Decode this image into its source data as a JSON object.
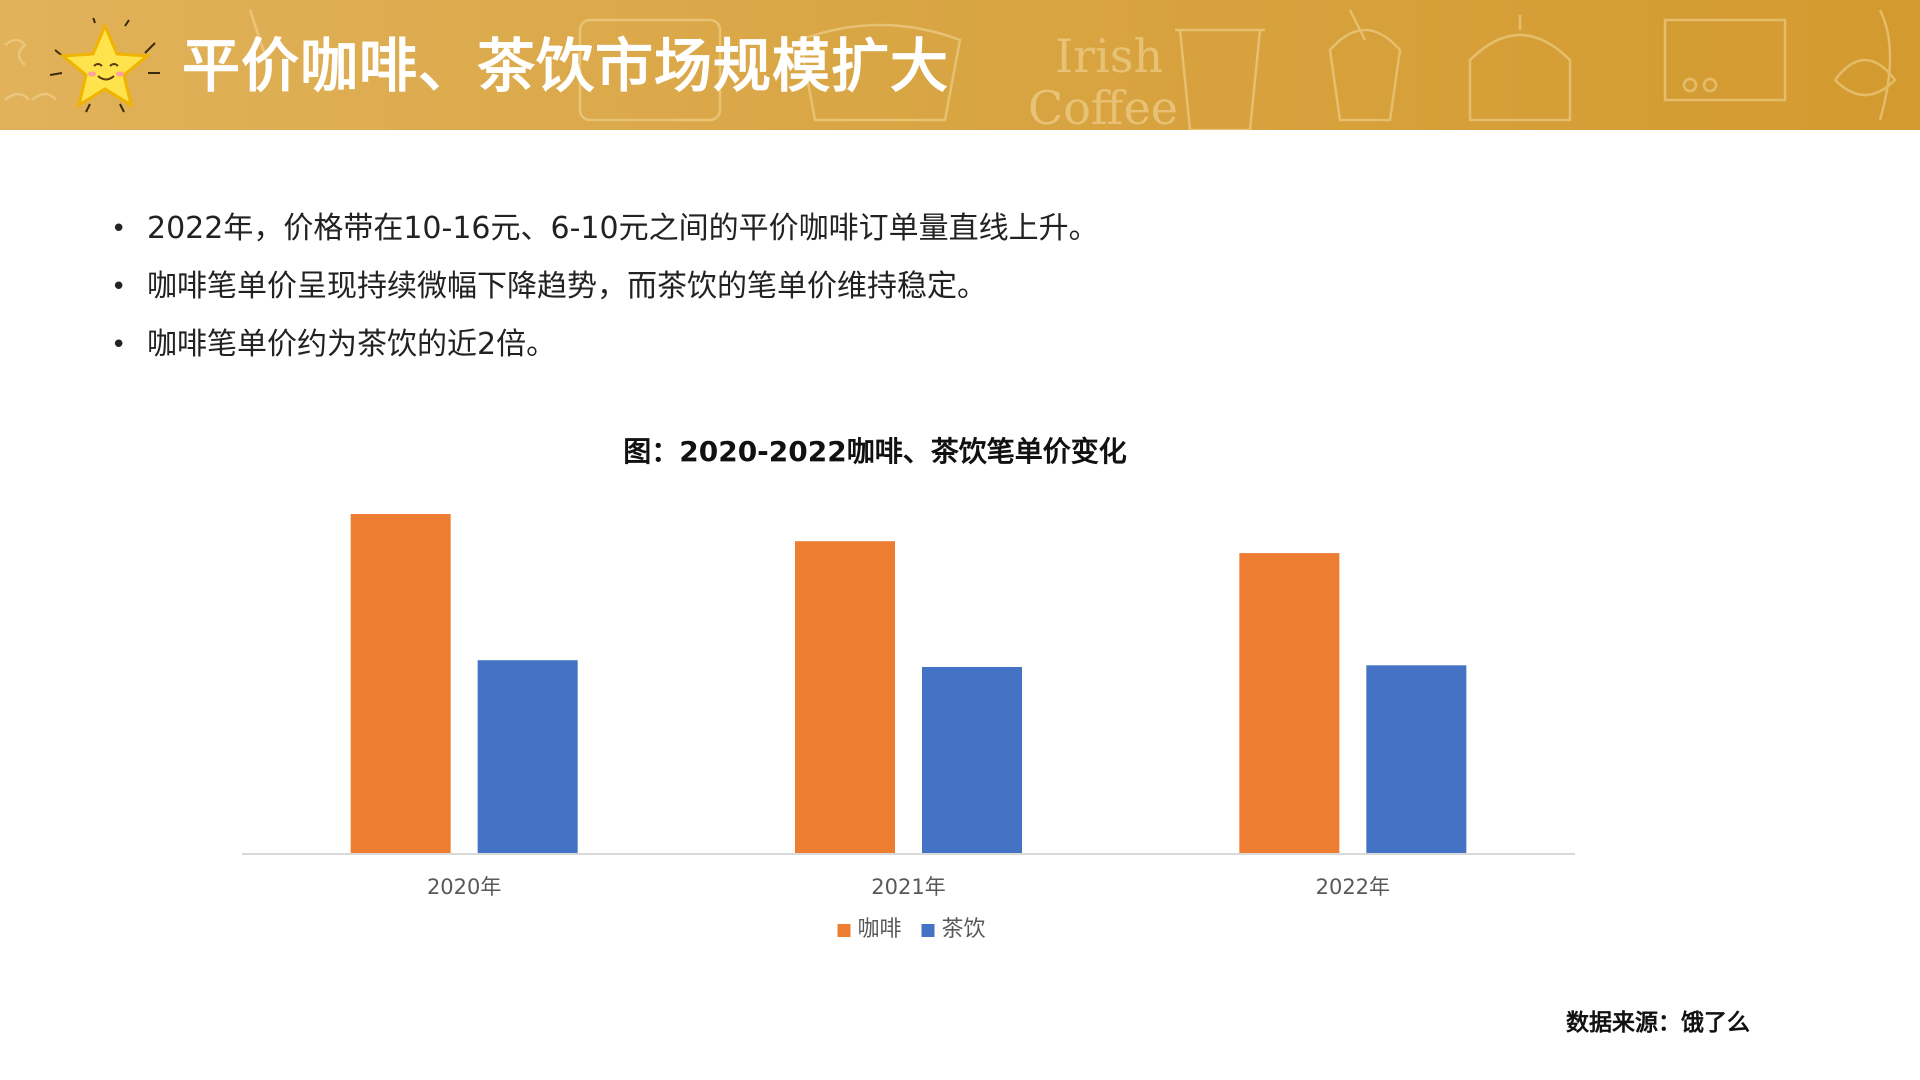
{
  "header": {
    "title": "平价咖啡、茶饮市场规模扩大",
    "decor_text_1": "Irish",
    "decor_text_2": "Coffee"
  },
  "bullets": [
    "2022年，价格带在10-16元、6-10元之间的平价咖啡订单量直线上升。",
    "咖啡笔单价呈现持续微幅下降趋势，而茶饮的笔单价维持稳定。",
    "咖啡笔单价约为茶饮的近2倍。"
  ],
  "chart_data": {
    "type": "bar",
    "title": "图：2020-2022咖啡、茶饮笔单价变化",
    "categories": [
      "2020年",
      "2021年",
      "2022年"
    ],
    "series": [
      {
        "name": "咖啡",
        "color": "#ed7d31",
        "values": [
          100,
          92,
          88.5
        ]
      },
      {
        "name": "茶饮",
        "color": "#4472c4",
        "values": [
          57,
          55,
          55.5
        ]
      }
    ],
    "ylim": [
      0,
      100
    ],
    "grid": false,
    "legend": "bottom",
    "xlabel": "",
    "ylabel": ""
  },
  "source": "数据来源：饿了么",
  "colors": {
    "banner": "#d9a645",
    "axis": "#d9d9d9"
  }
}
